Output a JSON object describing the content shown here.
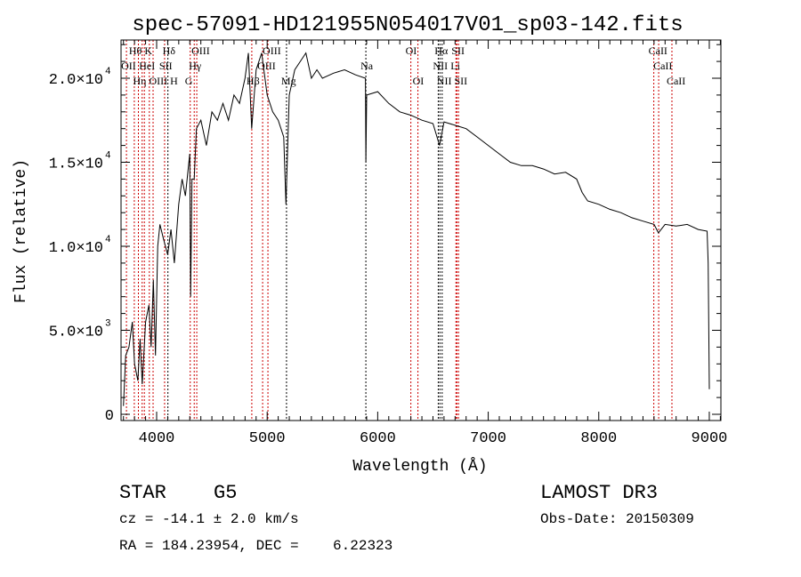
{
  "chart_data": {
    "type": "line",
    "title": "spec-57091-HD121955N054017V01_sp03-142.fits",
    "xlabel": "Wavelength (Å)",
    "ylabel": "Flux (relative)",
    "xlim": [
      3678,
      9105
    ],
    "ylim": [
      -370,
      22275
    ],
    "x_ticks": [
      {
        "v": 4000,
        "label": "4000"
      },
      {
        "v": 5000,
        "label": "5000"
      },
      {
        "v": 6000,
        "label": "6000"
      },
      {
        "v": 7000,
        "label": "7000"
      },
      {
        "v": 8000,
        "label": "8000"
      },
      {
        "v": 9000,
        "label": "9000"
      }
    ],
    "y_ticks": [
      {
        "v": 0,
        "label": "0",
        "exp": ""
      },
      {
        "v": 5000,
        "label": "5.0×10",
        "exp": "3"
      },
      {
        "v": 10000,
        "label": "1.0×10",
        "exp": "4"
      },
      {
        "v": 15000,
        "label": "1.5×10",
        "exp": "4"
      },
      {
        "v": 20000,
        "label": "2.0×10",
        "exp": "4"
      }
    ],
    "grid": false,
    "series": [
      {
        "name": "spectrum",
        "color": "#000000",
        "x": [
          3700,
          3720,
          3750,
          3780,
          3800,
          3830,
          3850,
          3870,
          3900,
          3930,
          3950,
          3970,
          3990,
          4010,
          4030,
          4060,
          4100,
          4130,
          4160,
          4200,
          4230,
          4260,
          4300,
          4308,
          4320,
          4340,
          4360,
          4400,
          4450,
          4500,
          4550,
          4600,
          4650,
          4700,
          4750,
          4800,
          4830,
          4860,
          4900,
          4950,
          5000,
          5050,
          5100,
          5150,
          5170,
          5200,
          5250,
          5300,
          5350,
          5400,
          5450,
          5500,
          5600,
          5700,
          5800,
          5889,
          5893,
          5900,
          6000,
          6100,
          6200,
          6300,
          6400,
          6500,
          6560,
          6600,
          6700,
          6800,
          6900,
          7000,
          7100,
          7200,
          7300,
          7400,
          7500,
          7600,
          7700,
          7800,
          7850,
          7900,
          8000,
          8100,
          8200,
          8300,
          8400,
          8500,
          8540,
          8600,
          8700,
          8800,
          8900,
          8980,
          8990,
          9000
        ],
        "y": [
          500,
          3500,
          4000,
          5500,
          3000,
          2000,
          4500,
          1800,
          5500,
          6500,
          4000,
          8000,
          3500,
          10000,
          11300,
          10500,
          9500,
          11000,
          9000,
          12500,
          14000,
          13000,
          15500,
          7000,
          14000,
          14000,
          17000,
          17500,
          16000,
          18000,
          17500,
          18500,
          17500,
          19000,
          18500,
          20000,
          21500,
          17000,
          20500,
          21500,
          19000,
          18000,
          17500,
          16500,
          12500,
          19000,
          20500,
          21000,
          21500,
          20000,
          20500,
          20000,
          20300,
          20500,
          20200,
          20000,
          15000,
          19000,
          19200,
          18500,
          18000,
          17800,
          17500,
          17300,
          16000,
          17400,
          17200,
          17000,
          16500,
          16000,
          15500,
          15000,
          14800,
          14800,
          14600,
          14300,
          14400,
          14000,
          13200,
          12700,
          12500,
          12200,
          12000,
          11700,
          11500,
          11300,
          10800,
          11300,
          11200,
          11300,
          11000,
          10900,
          9000,
          1500
        ]
      }
    ],
    "line_markers": [
      {
        "w": 3798,
        "label": "Hθ",
        "row": 1,
        "color": "#cc0000"
      },
      {
        "w": 3934,
        "label": "K",
        "row": 1,
        "color": "#cc0000"
      },
      {
        "w": 4102,
        "label": "Hδ",
        "row": 1,
        "color": "#000000"
      },
      {
        "w": 4363,
        "label": "OIII",
        "row": 1,
        "color": "#cc0000"
      },
      {
        "w": 5007,
        "label": "OIII",
        "row": 1,
        "color": "#cc0000"
      },
      {
        "w": 6300,
        "label": "OI",
        "row": 1,
        "color": "#cc0000"
      },
      {
        "w": 6563,
        "label": "Hα",
        "row": 1,
        "color": "#000000"
      },
      {
        "w": 6716,
        "label": "SII",
        "row": 1,
        "color": "#cc0000"
      },
      {
        "w": 8498,
        "label": "CaII",
        "row": 1,
        "color": "#cc0000"
      },
      {
        "w": 3727,
        "label": "OII",
        "row": 2,
        "color": "#cc0000"
      },
      {
        "w": 3889,
        "label": "HeI",
        "row": 2,
        "color": "#cc0000"
      },
      {
        "w": 4072,
        "label": "SII",
        "row": 2,
        "color": "#cc0000"
      },
      {
        "w": 4340,
        "label": "Hγ",
        "row": 2,
        "color": "#cc0000"
      },
      {
        "w": 4959,
        "label": "OIII",
        "row": 2,
        "color": "#cc0000"
      },
      {
        "w": 5893,
        "label": "Na",
        "row": 2,
        "color": "#000000"
      },
      {
        "w": 6548,
        "label": "NII",
        "row": 2,
        "color": "#000000"
      },
      {
        "w": 6708,
        "label": "Li",
        "row": 2,
        "color": "#cc0000"
      },
      {
        "w": 8542,
        "label": "CaII",
        "row": 2,
        "color": "#cc0000"
      },
      {
        "w": 3869,
        "label": "OIII",
        "row": 3,
        "color": "#cc0000"
      },
      {
        "w": 3835,
        "label": "Hη",
        "row": 3,
        "color": "#cc0000"
      },
      {
        "w": 3968,
        "label": "H",
        "row": 3,
        "color": "#cc0000"
      },
      {
        "w": 4304,
        "label": "G",
        "row": 3,
        "color": "#cc0000"
      },
      {
        "w": 4861,
        "label": "Hβ",
        "row": 3,
        "color": "#cc0000"
      },
      {
        "w": 5175,
        "label": "Mg",
        "row": 3,
        "color": "#000000"
      },
      {
        "w": 6364,
        "label": "OI",
        "row": 3,
        "color": "#cc0000"
      },
      {
        "w": 6583,
        "label": "NII",
        "row": 3,
        "color": "#000000"
      },
      {
        "w": 6731,
        "label": "SII",
        "row": 3,
        "color": "#cc0000"
      },
      {
        "w": 8662,
        "label": "CaII",
        "row": 3,
        "color": "#cc0000"
      }
    ]
  },
  "info": {
    "class": "STAR",
    "subclass": "G5",
    "cz": "cz = -14.1 ± 2.0 km/s",
    "radec": "RA = 184.23954, DEC =    6.22323",
    "survey": "LAMOST DR3",
    "obsdate": "Obs-Date: 20150309"
  }
}
